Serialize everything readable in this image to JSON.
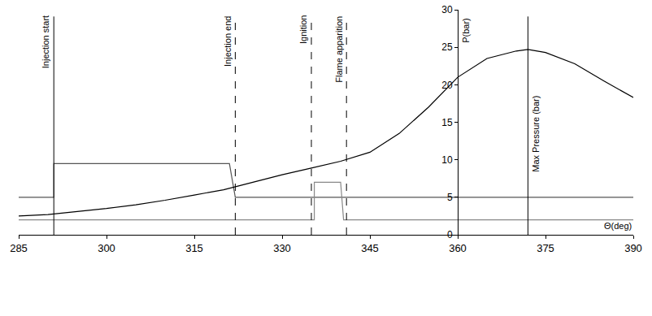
{
  "chart_data": {
    "type": "line",
    "x_title": "Θ(deg)",
    "y_title": "P(bar)",
    "xlim": [
      285,
      390
    ],
    "xticks": [
      285,
      300,
      315,
      330,
      345,
      360,
      375,
      390
    ],
    "ylim": [
      0,
      30
    ],
    "yticks": [
      0,
      5,
      10,
      15,
      20,
      25,
      30
    ],
    "y_axis_at": 360,
    "grid": false,
    "series": [
      {
        "color": "#555555",
        "line_style": "solid",
        "x": [
          285,
          291,
          291,
          321,
          322,
          390
        ],
        "values": [
          5,
          5,
          9.5,
          9.5,
          5,
          5
        ]
      },
      {
        "color": "#888888",
        "line_style": "solid",
        "x": [
          285,
          335.5,
          335.5,
          340,
          340.5,
          390
        ],
        "values": [
          2,
          2,
          7,
          7,
          2,
          2
        ]
      },
      {
        "color": "#000000",
        "line_style": "solid",
        "x": [
          285,
          290,
          295,
          300,
          305,
          310,
          315,
          320,
          325,
          330,
          335,
          340,
          345,
          350,
          355,
          360,
          365,
          370,
          372,
          375,
          380,
          385,
          390
        ],
        "values": [
          2.5,
          2.7,
          3.1,
          3.5,
          4.0,
          4.6,
          5.3,
          6.0,
          7.0,
          8.0,
          8.9,
          9.8,
          11.0,
          13.5,
          17.0,
          21.0,
          23.5,
          24.5,
          24.7,
          24.3,
          22.8,
          20.5,
          18.3
        ]
      }
    ],
    "annotations": [
      {
        "x": 291,
        "text": "Injection start",
        "line_style": "solid"
      },
      {
        "x": 322,
        "text": "Injection end",
        "line_style": "dashed"
      },
      {
        "x": 335,
        "text": "Ignition",
        "line_style": "dashed"
      },
      {
        "x": 341,
        "text": "Flame apparition",
        "line_style": "dashed"
      },
      {
        "x": 372,
        "text": "Max Pressure (bar)",
        "line_style": "solid"
      }
    ]
  }
}
